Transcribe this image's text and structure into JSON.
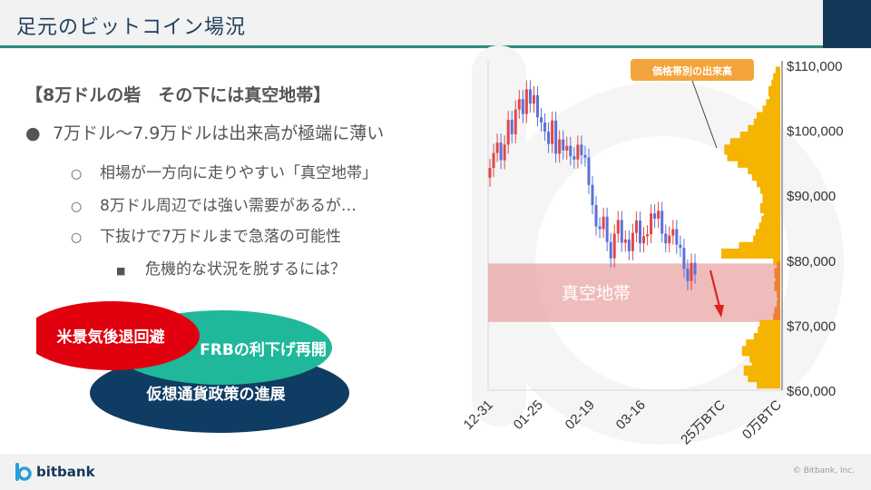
{
  "header": {
    "title": "足元のビットコイン場況"
  },
  "bullets": {
    "heading": "【8万ドルの砦　その下には真空地帯】",
    "level1": {
      "bullet": "●",
      "text": "7万ドル〜7.9万ドルは出来高が極端に薄い"
    },
    "level2": [
      {
        "bullet": "○",
        "text": "相場が一方向に走りやすい「真空地帯」"
      },
      {
        "bullet": "○",
        "text": "8万ドル周辺では強い需要があるが…"
      },
      {
        "bullet": "○",
        "text": "下抜けで7万ドルまで急落の可能性"
      }
    ],
    "level3": {
      "bullet": "■",
      "text": "危機的な状況を脱するには？"
    }
  },
  "venn": {
    "circles": [
      {
        "label": "米景気後退回避",
        "color": "#e0000e"
      },
      {
        "label": "FRBの利下げ再開",
        "color": "#1fb89a"
      },
      {
        "label": "仮想通貨政策の進展",
        "color": "#0f3c62"
      }
    ]
  },
  "chart_data": {
    "type": "candlestick_with_volume_profile",
    "y_axis": {
      "ticks": [
        "$110,000",
        "$100,000",
        "$90,000",
        "$80,000",
        "$70,000",
        "$60,000"
      ],
      "range": [
        60000,
        110000
      ]
    },
    "x_ticks": [
      "12-31",
      "01-25",
      "02-19",
      "03-16",
      "25万BTC",
      "0万BTC"
    ],
    "volume_label": "価格帯別の出来高",
    "zone_label": "真空地帯",
    "zone_range": [
      70500,
      79500
    ],
    "colors": {
      "up": "#e04848",
      "down": "#5a72d8",
      "volume": "#f4b400",
      "volume_in_zone": "#f08030",
      "zone": "#e8a0a0",
      "callout": "#f4a43c",
      "arrow": "#e02020"
    },
    "candles_close": [
      94200,
      96500,
      98100,
      95400,
      97800,
      101600,
      99400,
      103200,
      104800,
      102500,
      106300,
      104100,
      105400,
      102000,
      101200,
      99800,
      97900,
      101500,
      96400,
      98600,
      96900,
      97600,
      96000,
      95500,
      97800,
      96200,
      95800,
      91600,
      88500,
      85200,
      84800,
      86700,
      82800,
      80300,
      84100,
      86200,
      82700,
      83200,
      81400,
      84200,
      86100,
      82600,
      83700,
      84000,
      87200,
      86400,
      87600,
      84100,
      82600,
      83800,
      84800,
      82400,
      81900,
      78700,
      76800,
      79600,
      77800
    ],
    "volume_profile": [
      {
        "price": 109000,
        "vol": 0.08
      },
      {
        "price": 108000,
        "vol": 0.12
      },
      {
        "price": 107000,
        "vol": 0.15
      },
      {
        "price": 106000,
        "vol": 0.2
      },
      {
        "price": 105000,
        "vol": 0.18
      },
      {
        "price": 104000,
        "vol": 0.24
      },
      {
        "price": 103000,
        "vol": 0.3
      },
      {
        "price": 102000,
        "vol": 0.4
      },
      {
        "price": 101000,
        "vol": 0.45
      },
      {
        "price": 100000,
        "vol": 0.55
      },
      {
        "price": 99000,
        "vol": 0.68
      },
      {
        "price": 98000,
        "vol": 0.85
      },
      {
        "price": 97000,
        "vol": 0.95
      },
      {
        "price": 96000,
        "vol": 0.9
      },
      {
        "price": 95000,
        "vol": 0.72
      },
      {
        "price": 94000,
        "vol": 0.55
      },
      {
        "price": 93000,
        "vol": 0.48
      },
      {
        "price": 92000,
        "vol": 0.4
      },
      {
        "price": 91000,
        "vol": 0.34
      },
      {
        "price": 90000,
        "vol": 0.3
      },
      {
        "price": 89000,
        "vol": 0.3
      },
      {
        "price": 88000,
        "vol": 0.34
      },
      {
        "price": 87000,
        "vol": 0.28
      },
      {
        "price": 86000,
        "vol": 0.32
      },
      {
        "price": 85000,
        "vol": 0.36
      },
      {
        "price": 84000,
        "vol": 0.42
      },
      {
        "price": 83000,
        "vol": 0.46
      },
      {
        "price": 82000,
        "vol": 0.7
      },
      {
        "price": 81000,
        "vol": 1.0
      },
      {
        "price": 80000,
        "vol": 0.12
      },
      {
        "price": 79000,
        "vol": 0.06
      },
      {
        "price": 78000,
        "vol": 0.1
      },
      {
        "price": 77000,
        "vol": 0.08
      },
      {
        "price": 76000,
        "vol": 0.1
      },
      {
        "price": 75000,
        "vol": 0.06
      },
      {
        "price": 74000,
        "vol": 0.05
      },
      {
        "price": 73000,
        "vol": 0.06
      },
      {
        "price": 72000,
        "vol": 0.1
      },
      {
        "price": 71000,
        "vol": 0.12
      },
      {
        "price": 70000,
        "vol": 0.35
      },
      {
        "price": 69000,
        "vol": 0.38
      },
      {
        "price": 68000,
        "vol": 0.45
      },
      {
        "price": 67000,
        "vol": 0.58
      },
      {
        "price": 66000,
        "vol": 0.65
      },
      {
        "price": 65000,
        "vol": 0.52
      },
      {
        "price": 64000,
        "vol": 0.48
      },
      {
        "price": 63000,
        "vol": 0.62
      },
      {
        "price": 62000,
        "vol": 0.55
      },
      {
        "price": 61000,
        "vol": 0.4
      }
    ]
  },
  "footer": {
    "brand": "bitbank",
    "copyright": "© Bitbank, Inc."
  }
}
